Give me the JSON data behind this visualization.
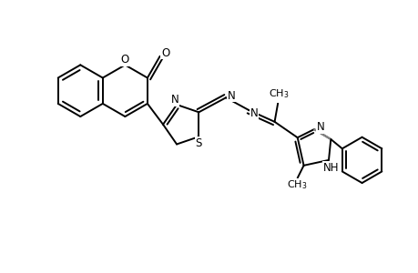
{
  "background_color": "#ffffff",
  "line_color": "#000000",
  "gray_color": "#888888",
  "lw": 1.4,
  "lw_thin": 1.1,
  "fs_label": 8.5,
  "xlim": [
    0,
    10
  ],
  "ylim": [
    0,
    6.5
  ]
}
